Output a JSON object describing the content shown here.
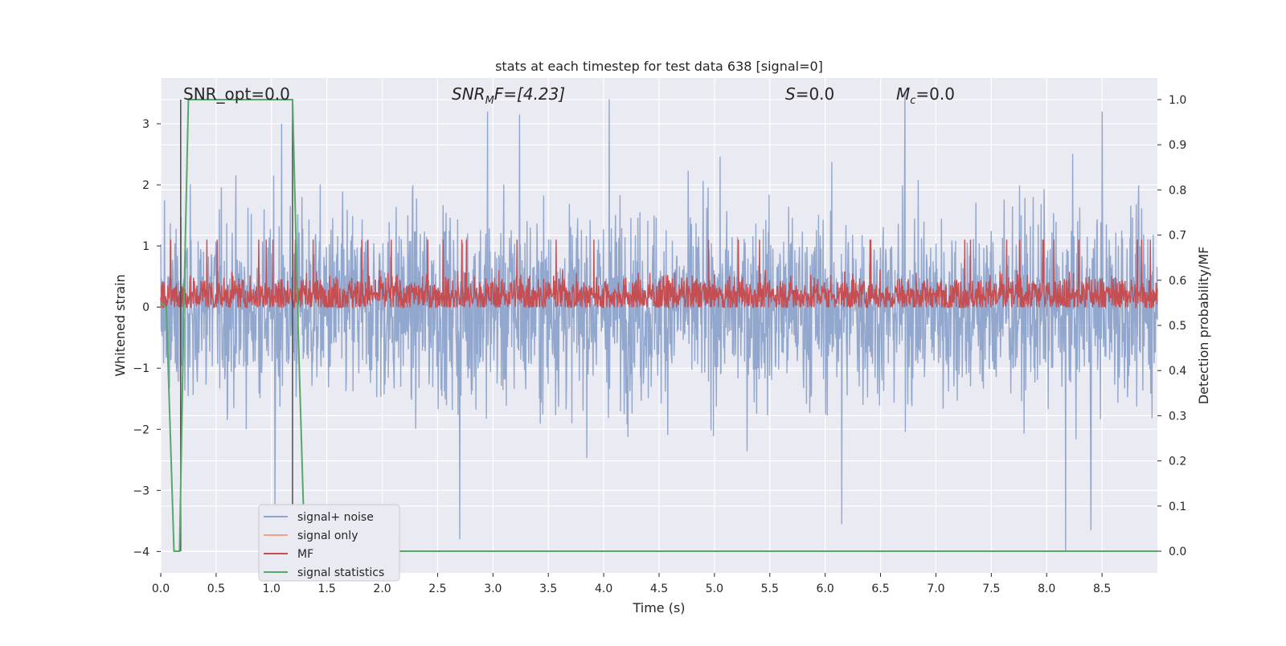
{
  "chart_data": {
    "type": "line",
    "title": "stats at each timestep for test data 638 [signal=0]",
    "xlabel": "Time (s)",
    "ylabel": "Whitened strain",
    "y2label": "Detection probability/MF",
    "xlim": [
      0.0,
      9.0
    ],
    "ylim": [
      -4.35,
      3.75
    ],
    "y2lim": [
      -0.048,
      1.048
    ],
    "xticks": [
      0.0,
      0.5,
      1.0,
      1.5,
      2.0,
      2.5,
      3.0,
      3.5,
      4.0,
      4.5,
      5.0,
      5.5,
      6.0,
      6.5,
      7.0,
      7.5,
      8.0,
      8.5
    ],
    "xtick_labels": [
      "0.0",
      "0.5",
      "1.0",
      "1.5",
      "2.0",
      "2.5",
      "3.0",
      "3.5",
      "4.0",
      "4.5",
      "5.0",
      "5.5",
      "6.0",
      "6.5",
      "7.0",
      "7.5",
      "8.0",
      "8.5"
    ],
    "yticks": [
      3,
      2,
      1,
      0,
      -1,
      -2,
      -3,
      -4
    ],
    "ytick_labels": [
      "3",
      "2",
      "1",
      "0",
      "−1",
      "−2",
      "−3",
      "−4"
    ],
    "y2ticks": [
      1.0,
      0.9,
      0.8,
      0.7,
      0.6,
      0.5,
      0.4,
      0.3,
      0.2,
      0.1,
      0.0
    ],
    "y2tick_labels": [
      "1.0",
      "0.9",
      "0.8",
      "0.7",
      "0.6",
      "0.5",
      "0.4",
      "0.3",
      "0.2",
      "0.1",
      "0.0"
    ],
    "grid": true,
    "legend_position": "lower-left",
    "annotations": {
      "snr_opt": "SNR_opt=0.0",
      "snr_mf_label": "SNR",
      "snr_mf_sub": "M",
      "snr_mf_rest": "F=[4.23]",
      "s_label": "S",
      "s_rest": "=0.0",
      "mc_label": "M",
      "mc_sub": "c",
      "mc_rest": "=0.0"
    },
    "series": [
      {
        "name": "signal+ noise",
        "color": "#8da3cb",
        "axis": "left",
        "description": "dense noise trace",
        "approx_range": [
          -4.0,
          3.5
        ],
        "notable_peaks": [
          [
            1.09,
            3.0
          ],
          [
            2.95,
            3.2
          ],
          [
            3.24,
            3.15
          ],
          [
            4.05,
            3.4
          ],
          [
            6.72,
            3.5
          ],
          [
            8.5,
            3.2
          ]
        ],
        "notable_dips": [
          [
            1.03,
            -3.4
          ],
          [
            2.7,
            -3.8
          ],
          [
            6.15,
            -3.55
          ],
          [
            8.17,
            -4.0
          ],
          [
            8.4,
            -3.65
          ]
        ]
      },
      {
        "name": "signal only",
        "color": "#f0a486",
        "axis": "left",
        "description": "zero signal (not visible)"
      },
      {
        "name": "MF",
        "color": "#c44e52",
        "axis": "right",
        "description": "matched filter trace",
        "approx_range": [
          0.54,
          0.69
        ]
      },
      {
        "name": "signal statistics",
        "color": "#55a868",
        "axis": "right",
        "x": [
          0.0,
          0.05,
          0.12,
          0.17,
          0.21,
          0.25,
          1.19,
          1.24,
          1.3,
          9.0
        ],
        "y": [
          0.55,
          0.54,
          0.0,
          0.0,
          0.55,
          1.0,
          1.0,
          0.5,
          0.0,
          0.0
        ]
      }
    ],
    "vertical_lines": [
      0.18,
      1.19
    ]
  }
}
